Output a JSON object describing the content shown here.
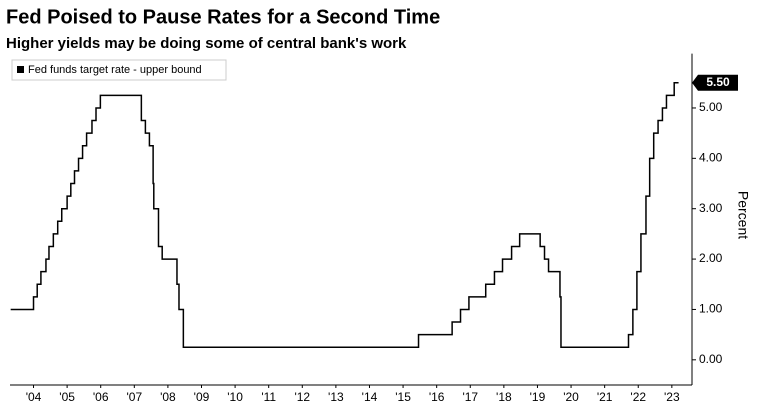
{
  "chart_data": {
    "type": "step-line",
    "title": "Fed Poised to Pause Rates for a Second Time",
    "subtitle": "Higher yields may be doing some of central bank's work",
    "y_label": "Percent",
    "legend": "top-left",
    "grid": false,
    "xlim": [
      2003.8,
      2024.1
    ],
    "xticks": [
      {
        "value": 2004.5,
        "label": "'04"
      },
      {
        "value": 2005.5,
        "label": "'05"
      },
      {
        "value": 2006.5,
        "label": "'06"
      },
      {
        "value": 2007.5,
        "label": "'07"
      },
      {
        "value": 2008.5,
        "label": "'08"
      },
      {
        "value": 2009.5,
        "label": "'09"
      },
      {
        "value": 2010.5,
        "label": "'10"
      },
      {
        "value": 2011.5,
        "label": "'11"
      },
      {
        "value": 2012.5,
        "label": "'12"
      },
      {
        "value": 2013.5,
        "label": "'13"
      },
      {
        "value": 2014.5,
        "label": "'14"
      },
      {
        "value": 2015.5,
        "label": "'15"
      },
      {
        "value": 2016.5,
        "label": "'16"
      },
      {
        "value": 2017.5,
        "label": "'17"
      },
      {
        "value": 2018.5,
        "label": "'18"
      },
      {
        "value": 2019.5,
        "label": "'19"
      },
      {
        "value": 2020.5,
        "label": "'20"
      },
      {
        "value": 2021.5,
        "label": "'21"
      },
      {
        "value": 2022.5,
        "label": "'22"
      },
      {
        "value": 2023.5,
        "label": "'23"
      }
    ],
    "ylim": [
      -0.5,
      6
    ],
    "yticks": [
      {
        "value": 0,
        "label": "0.00"
      },
      {
        "value": 1,
        "label": "1.00"
      },
      {
        "value": 2,
        "label": "2.00"
      },
      {
        "value": 3,
        "label": "3.00"
      },
      {
        "value": 4,
        "label": "4.00"
      },
      {
        "value": 5,
        "label": "5.00"
      }
    ],
    "x": [
      2003.82,
      2004.5,
      2004.61,
      2004.72,
      2004.87,
      2004.96,
      2005.09,
      2005.22,
      2005.34,
      2005.5,
      2005.61,
      2005.72,
      2005.84,
      2005.96,
      2006.08,
      2006.24,
      2006.36,
      2006.49,
      2007.71,
      2007.83,
      2007.95,
      2008.06,
      2008.08,
      2008.22,
      2008.33,
      2008.77,
      2008.83,
      2008.96,
      2015.96,
      2016.96,
      2017.21,
      2017.46,
      2017.96,
      2018.22,
      2018.46,
      2018.73,
      2018.97,
      2019.58,
      2019.71,
      2019.83,
      2020.17,
      2020.2,
      2022.21,
      2022.34,
      2022.46,
      2022.58,
      2022.73,
      2022.84,
      2022.96,
      2023.09,
      2023.22,
      2023.34,
      2023.57,
      2023.7
    ],
    "series": [
      {
        "name": "Fed funds target rate - upper bound",
        "color": "#000000",
        "values": [
          1.0,
          1.25,
          1.5,
          1.75,
          2.0,
          2.25,
          2.5,
          2.75,
          3.0,
          3.25,
          3.5,
          3.75,
          4.0,
          4.25,
          4.5,
          4.75,
          5.0,
          5.25,
          4.75,
          4.5,
          4.25,
          3.5,
          3.0,
          2.25,
          2.0,
          1.5,
          1.0,
          0.25,
          0.5,
          0.75,
          1.0,
          1.25,
          1.5,
          1.75,
          2.0,
          2.25,
          2.5,
          2.25,
          2.0,
          1.75,
          1.25,
          0.25,
          0.5,
          1.0,
          1.75,
          2.5,
          3.25,
          4.0,
          4.5,
          4.75,
          5.0,
          5.25,
          5.5,
          5.5
        ],
        "last_value": {
          "value": 5.5,
          "label": "5.50"
        }
      }
    ]
  }
}
